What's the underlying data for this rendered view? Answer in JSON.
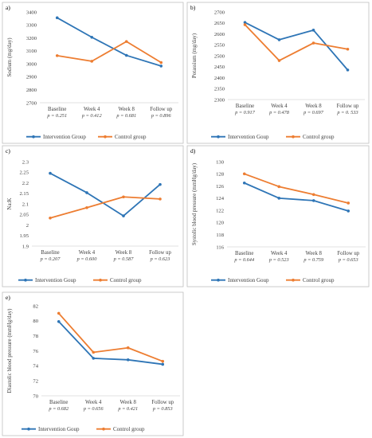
{
  "colors": {
    "intervention": "#2e75b6",
    "control": "#ed7d31"
  },
  "legend": {
    "intervention": "Intervention Group",
    "control": "Control group"
  },
  "chart_data": [
    {
      "panel": "a)",
      "type": "line",
      "ylabel": "Sodium (mg/day)",
      "categories": [
        "Baseline",
        "Week 4",
        "Week 8",
        "Follow up"
      ],
      "pvalues": [
        "p = 0.251",
        "p = 0.412",
        "p = 0.681",
        "p = 0.896"
      ],
      "ylim": [
        2700,
        3400
      ],
      "yticks": [
        2700,
        2800,
        2900,
        3000,
        3100,
        3200,
        3300,
        3400
      ],
      "ytick_labels": [
        "2700",
        "2800",
        "2900",
        "3000",
        "3100",
        "3200",
        "3300",
        "3400"
      ],
      "series": [
        {
          "name": "Intervention Group",
          "values": [
            3355,
            3205,
            3065,
            2983
          ]
        },
        {
          "name": "Control group",
          "values": [
            3063,
            3020,
            3172,
            3010
          ]
        }
      ]
    },
    {
      "panel": "b)",
      "type": "line",
      "ylabel": "Potassium (mg/day)",
      "categories": [
        "Baseline",
        "Week 4",
        "Week 8",
        "Follow up"
      ],
      "pvalues": [
        "p = 0.917",
        "p = 0.478",
        "p = 0.697",
        "p = 0. 533"
      ],
      "ylim": [
        2300,
        2700
      ],
      "yticks": [
        2300,
        2350,
        2400,
        2450,
        2500,
        2550,
        2600,
        2650,
        2700
      ],
      "ytick_labels": [
        "2300",
        "2350",
        "2400",
        "2450",
        "2500",
        "2550",
        "2600",
        "2650",
        "2700"
      ],
      "series": [
        {
          "name": "Intervention Goup",
          "values": [
            2652,
            2573,
            2617,
            2435
          ]
        },
        {
          "name": "Control group",
          "values": [
            2642,
            2478,
            2558,
            2530
          ]
        }
      ]
    },
    {
      "panel": "c)",
      "type": "line",
      "ylabel": "Na:K",
      "categories": [
        "Baseline",
        "Week 4",
        "Week 8",
        "Follow up"
      ],
      "pvalues": [
        "p = 0.207",
        "p = 0.600",
        "p = 0.587",
        "p = 0.623"
      ],
      "ylim": [
        1.9,
        2.3
      ],
      "yticks": [
        1.9,
        1.95,
        2.0,
        2.05,
        2.1,
        2.15,
        2.2,
        2.25,
        2.3
      ],
      "ytick_labels": [
        "1.9",
        "1.95",
        "2",
        "2.05",
        "2.1",
        "2.15",
        "2.2",
        "2.25",
        "2.3"
      ],
      "series": [
        {
          "name": "Intervention Goup",
          "values": [
            2.245,
            2.153,
            2.043,
            2.192
          ]
        },
        {
          "name": "Control group",
          "values": [
            2.033,
            2.082,
            2.133,
            2.123
          ]
        }
      ]
    },
    {
      "panel": "d)",
      "type": "line",
      "ylabel": "Systolic blood pressure (mmHg/day)",
      "categories": [
        "Baseline",
        "Week 4",
        "Week 8",
        "Follow up"
      ],
      "pvalues": [
        "p = 0.644",
        "p = 0.523",
        "p = 0.759",
        "p = 0.653"
      ],
      "ylim": [
        116,
        130
      ],
      "yticks": [
        116,
        118,
        120,
        122,
        124,
        126,
        128,
        130
      ],
      "ytick_labels": [
        "116",
        "118",
        "120",
        "122",
        "124",
        "126",
        "128",
        "130"
      ],
      "series": [
        {
          "name": "Intervention Goup",
          "values": [
            126.5,
            124.0,
            123.6,
            121.9
          ]
        },
        {
          "name": "Control group",
          "values": [
            128.0,
            125.9,
            124.6,
            123.2
          ]
        }
      ]
    },
    {
      "panel": "e)",
      "type": "line",
      "ylabel": "Diastolic blood pressure (mmHg/day)",
      "categories": [
        "Baseline",
        "Week 4",
        "Week 8",
        "Follow up"
      ],
      "pvalues": [
        "p = 0.682",
        "p = 0.656",
        "p = 0.421",
        "p = 0.853"
      ],
      "ylim": [
        70,
        82
      ],
      "yticks": [
        70,
        72,
        74,
        76,
        78,
        80,
        82
      ],
      "ytick_labels": [
        "70",
        "72",
        "74",
        "76",
        "78",
        "80",
        "82"
      ],
      "series": [
        {
          "name": "Intervention Goup",
          "values": [
            79.9,
            75.0,
            74.8,
            74.2
          ]
        },
        {
          "name": "Control group",
          "values": [
            81.0,
            75.8,
            76.4,
            74.6
          ]
        }
      ]
    }
  ]
}
